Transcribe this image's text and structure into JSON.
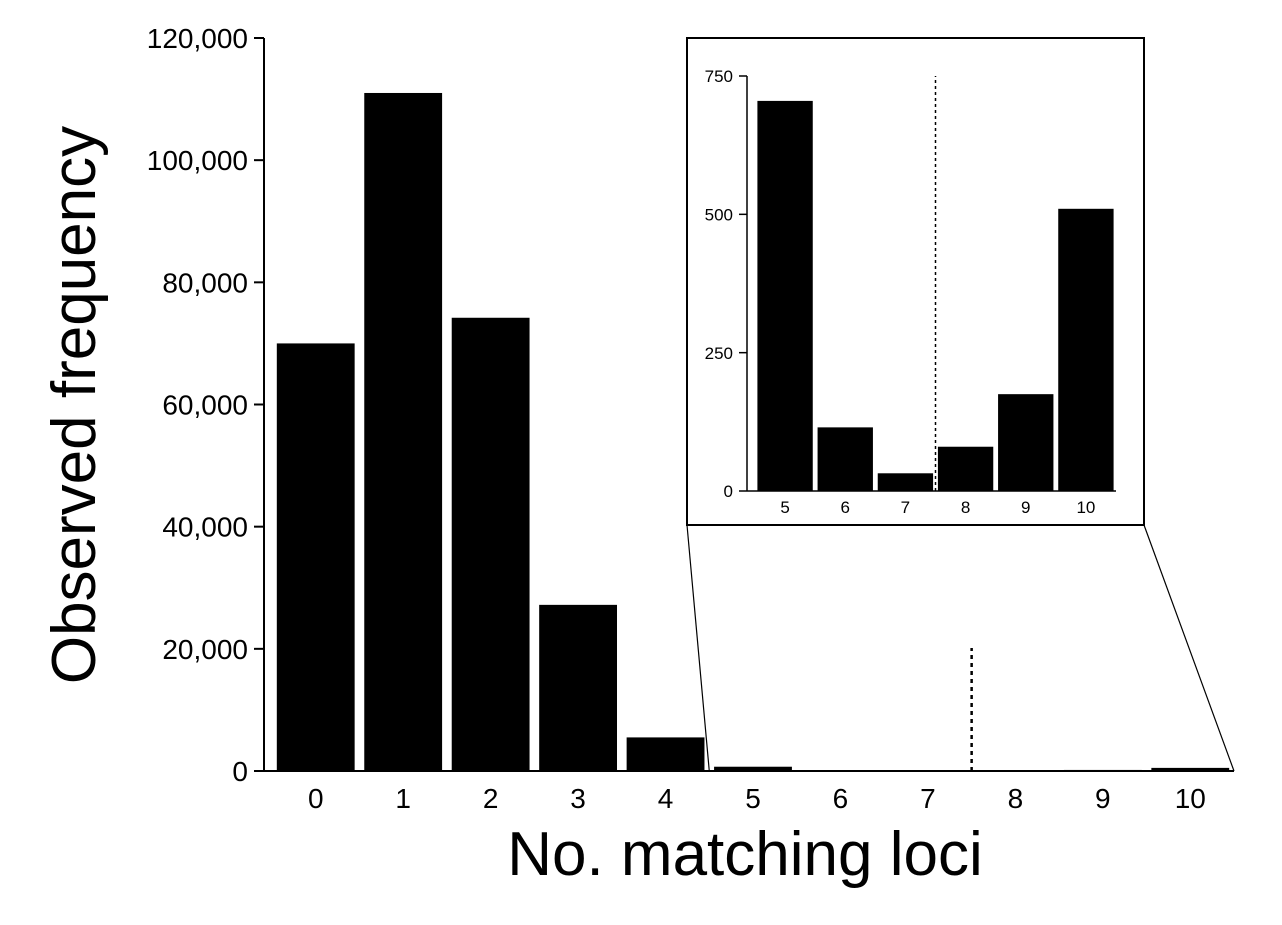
{
  "chart_data": [
    {
      "type": "bar",
      "categories": [
        "0",
        "1",
        "2",
        "3",
        "4",
        "5",
        "6",
        "7",
        "8",
        "9",
        "10"
      ],
      "values": [
        70000,
        111000,
        74200,
        27200,
        5500,
        700,
        115,
        30,
        80,
        175,
        510
      ],
      "xlabel": "No. matching loci",
      "ylabel": "Observed frequency",
      "ylim": [
        0,
        120000
      ],
      "yticks": [
        "0",
        "20,000",
        "40,000",
        "60,000",
        "80,000",
        "100,000",
        "120,000"
      ],
      "dashed_separator_between": [
        "7",
        "8"
      ],
      "grid": false,
      "bar_color": "#000000"
    },
    {
      "type": "bar",
      "role": "inset zoom of categories 5-10",
      "categories": [
        "5",
        "6",
        "7",
        "8",
        "9",
        "10"
      ],
      "values": [
        705,
        115,
        32,
        80,
        175,
        510
      ],
      "ylim": [
        0,
        750
      ],
      "yticks": [
        "0",
        "250",
        "500",
        "750"
      ],
      "dashed_separator_between": [
        "7",
        "8"
      ],
      "grid": false,
      "bar_color": "#000000"
    }
  ]
}
